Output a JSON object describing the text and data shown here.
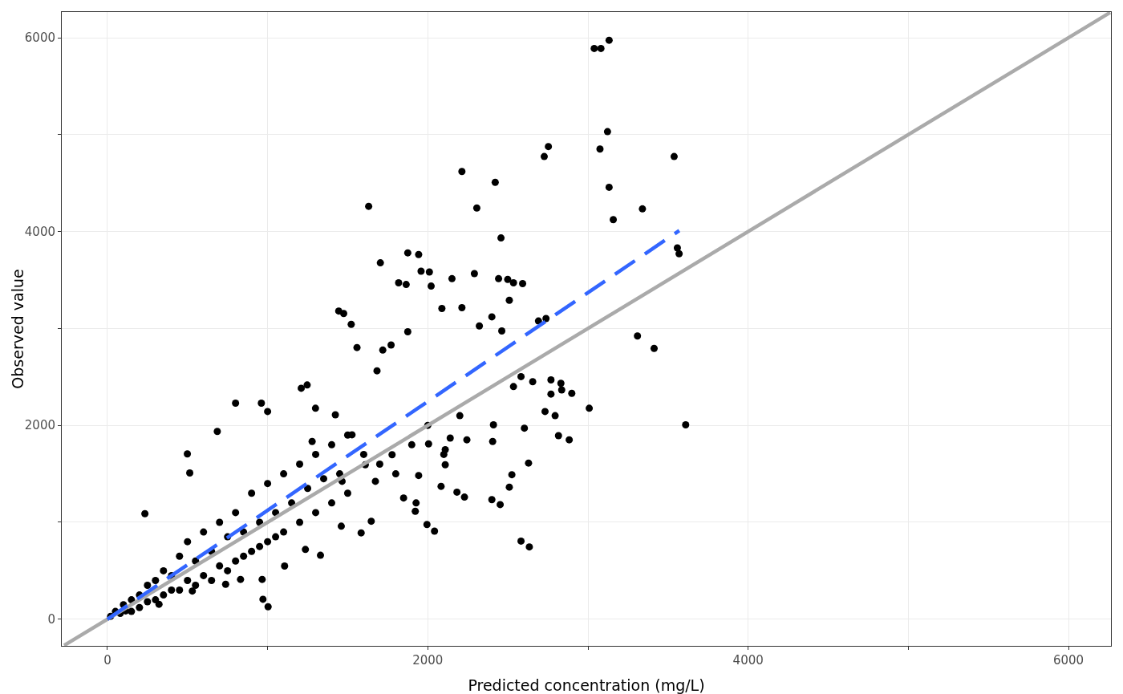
{
  "chart_data": {
    "type": "scatter",
    "xlabel": "Predicted concentration (mg/L)",
    "ylabel": "Observed value",
    "xlim": [
      -285,
      6265
    ],
    "ylim": [
      -275,
      6265
    ],
    "xticks": [
      0,
      {
        "value": 1000,
        "label": null
      },
      2000,
      {
        "value": 3000,
        "label": null
      },
      4000,
      {
        "value": 5000,
        "label": null
      },
      6000
    ],
    "yticks": [
      0,
      {
        "value": 1000,
        "label": null
      },
      2000,
      {
        "value": 3000,
        "label": null
      },
      4000,
      {
        "value": 5000,
        "label": null
      },
      6000
    ],
    "grid": true,
    "marker": "circle",
    "series": [
      {
        "color": "#000000",
        "x": [
          20,
          50,
          80,
          100,
          150,
          150,
          200,
          200,
          250,
          250,
          300,
          300,
          350,
          350,
          400,
          400,
          450,
          450,
          500,
          500,
          550,
          550,
          600,
          600,
          650,
          650,
          700,
          700,
          750,
          750,
          800,
          800,
          850,
          850,
          900,
          900,
          950,
          950,
          1000,
          1000,
          1050,
          1050,
          1100,
          1100,
          1150,
          1200,
          1200,
          1250,
          1300,
          1300,
          1350,
          1400,
          1400,
          1450,
          1500,
          1500,
          1600,
          1700,
          1800,
          1900,
          2000,
          2100,
          2200,
          234,
          499,
          514,
          686,
          800,
          961,
          1000,
          1247,
          1210,
          1299,
          1444,
          1522,
          1558,
          1719,
          1771,
          1683,
          1818,
          1875,
          1958,
          2021,
          2151,
          2291,
          2442,
          2535,
          2509,
          2400,
          2462,
          2322,
          2088,
          2213,
          2535,
          2582,
          2769,
          2836,
          2769,
          2732,
          2603,
          2816,
          2629,
          2525,
          2509,
          2400,
          2182,
          2083,
          2405,
          2410,
          2244,
          2109,
          1922,
          1995,
          1927,
          1849,
          1943,
          2005,
          2582,
          2109,
          2140,
          1584,
          1647,
          1460,
          1330,
          1236,
          1106,
          971,
          966,
          831,
          738,
          530,
          322,
          114,
          1465,
          1610,
          1777,
          1673,
          1527,
          1423,
          1278,
          3309,
          3413,
          3610,
          3008,
          2883,
          2831,
          2899,
          2795,
          2655,
          2738,
          2691,
          2592,
          2499,
          2213,
          2421,
          2306,
          1631,
          2457,
          2753,
          2727,
          3122,
          3075,
          3538,
          3132,
          3340,
          3158,
          3558,
          3569,
          1875,
          1943,
          1704,
          2010,
          1865,
          3039,
          3081,
          3132,
          2634,
          1003,
          2452,
          2042,
          2229,
          1475
        ],
        "values": [
          30,
          80,
          60,
          150,
          200,
          80,
          250,
          120,
          350,
          180,
          400,
          200,
          500,
          250,
          450,
          300,
          650,
          300,
          800,
          400,
          600,
          350,
          900,
          450,
          700,
          400,
          1000,
          550,
          850,
          500,
          1100,
          600,
          900,
          650,
          1300,
          700,
          1000,
          750,
          1400,
          800,
          1100,
          850,
          1500,
          900,
          1200,
          1600,
          1000,
          1350,
          1700,
          1100,
          1450,
          1800,
          1200,
          1500,
          1900,
          1300,
          1700,
          1600,
          1500,
          1800,
          2000,
          1700,
          2100,
          1089,
          1706,
          1509,
          1937,
          2229,
          2229,
          2143,
          2417,
          2383,
          2177,
          3180,
          3043,
          2803,
          2777,
          2829,
          2563,
          3471,
          2966,
          3591,
          3437,
          3514,
          3566,
          3514,
          3471,
          3291,
          3120,
          2974,
          3026,
          3206,
          3214,
          2400,
          2503,
          2469,
          2366,
          2323,
          2143,
          1971,
          1894,
          1611,
          1491,
          1363,
          1234,
          1311,
          1371,
          1834,
          2006,
          1851,
          1594,
          1114,
          977,
          1200,
          1251,
          1483,
          1809,
          806,
          1749,
          1869,
          891,
          1011,
          960,
          660,
          720,
          549,
          206,
          411,
          411,
          360,
          291,
          154,
          86,
          1423,
          1594,
          1697,
          1423,
          1903,
          2109,
          1834,
          2923,
          2794,
          2006,
          2177,
          1851,
          2434,
          2331,
          2100,
          2451,
          3103,
          3077,
          3463,
          3506,
          4620,
          4508,
          4243,
          4260,
          3934,
          4877,
          4774,
          5031,
          4851,
          4774,
          4457,
          4234,
          4123,
          3831,
          3771,
          3780,
          3763,
          3677,
          3583,
          3454,
          5889,
          5889,
          5974,
          746,
          129,
          1183,
          909,
          1260,
          3154
        ]
      },
      {
        "type": "line",
        "color": "#aaaaaa",
        "marker": "none",
        "line_style": "solid",
        "x": [
          -270,
          6260
        ],
        "values": [
          -270,
          6260
        ]
      },
      {
        "type": "line",
        "color": "#3366ff",
        "marker": "none",
        "line_style": "dashed",
        "x": [
          0,
          3570
        ],
        "values": [
          0,
          4010
        ]
      }
    ]
  }
}
